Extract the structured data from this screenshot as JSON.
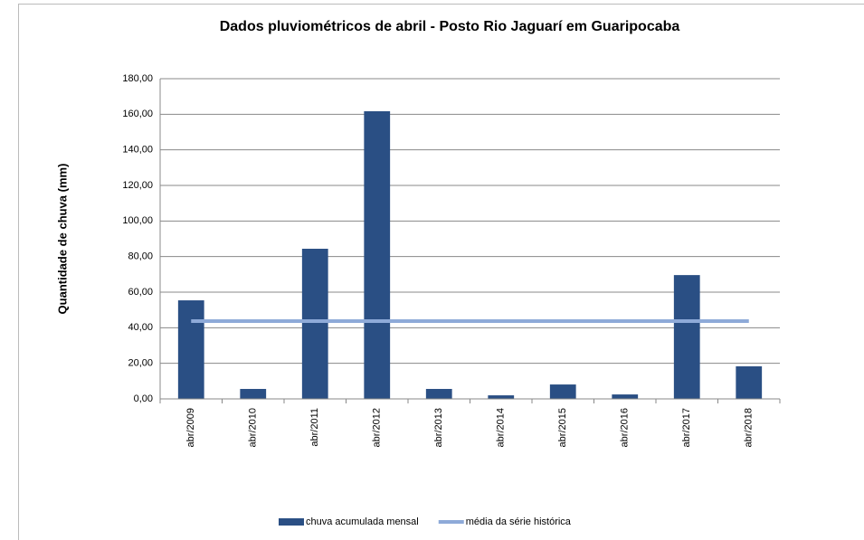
{
  "chart_data": {
    "type": "bar",
    "title": "Dados pluviométricos de abril - Posto Rio Jaguarí em Guaripocaba",
    "y_label": "Quantidade de chuva (mm)",
    "categories": [
      "abr/2009",
      "abr/2010",
      "abr/2011",
      "abr/2012",
      "abr/2013",
      "abr/2014",
      "abr/2015",
      "abr/2016",
      "abr/2017",
      "abr/2018"
    ],
    "series": [
      {
        "name": "chuva acumulada mensal",
        "type": "bar",
        "color": "#2a4f84",
        "values": [
          55.4,
          5.6,
          84.4,
          161.7,
          5.6,
          2.0,
          8.1,
          2.5,
          69.6,
          18.3
        ]
      },
      {
        "name": "média da série histórica",
        "type": "line",
        "color": "#8eaad8",
        "values": [
          43.7,
          43.7,
          43.7,
          43.7,
          43.7,
          43.7,
          43.7,
          43.7,
          43.7,
          43.7
        ]
      }
    ],
    "ylim": [
      0,
      180
    ],
    "yticks": [
      {
        "value": 0,
        "label": "0,00"
      },
      {
        "value": 20,
        "label": "20,00"
      },
      {
        "value": 40,
        "label": "40,00"
      },
      {
        "value": 60,
        "label": "60,00"
      },
      {
        "value": 80,
        "label": "80,00"
      },
      {
        "value": 100,
        "label": "100,00"
      },
      {
        "value": 120,
        "label": "120,00"
      },
      {
        "value": 140,
        "label": "140,00"
      },
      {
        "value": 160,
        "label": "160,00"
      },
      {
        "value": 180,
        "label": "180,00"
      }
    ],
    "grid": true,
    "legend": "bottom"
  }
}
